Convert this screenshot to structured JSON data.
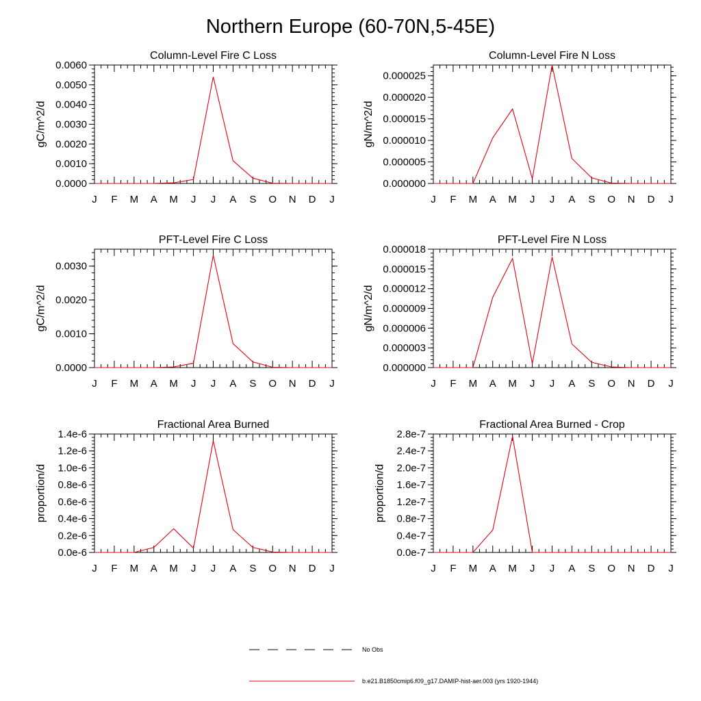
{
  "figure_title": "Northern Europe (60-70N,5-45E)",
  "legend": {
    "items": [
      {
        "name": "No Obs",
        "style": "dashed",
        "color": "#000000"
      },
      {
        "name": "b.e21.B1850cmip6.f09_g17.DAMIP-hist-aer.003 (yrs 1920-1944)",
        "style": "solid",
        "color": "#e4000f"
      }
    ]
  },
  "chart_data": [
    {
      "type": "line",
      "title": "Column-Level Fire C Loss",
      "ylabel": "gC/m^2/d",
      "xlabel": "",
      "categories": [
        "J",
        "F",
        "M",
        "A",
        "M",
        "J",
        "J",
        "A",
        "S",
        "O",
        "N",
        "D",
        "J"
      ],
      "ylim": [
        0,
        0.006
      ],
      "yticks": [
        0,
        0.001,
        0.002,
        0.003,
        0.004,
        0.005,
        0.006
      ],
      "ytick_labels": [
        "0.0000",
        "0.0010",
        "0.0020",
        "0.0030",
        "0.0040",
        "0.0050",
        "0.0060"
      ],
      "series": [
        {
          "values": [
            0,
            0,
            0,
            5e-06,
            3e-05,
            0.0002,
            0.0054,
            0.00115,
            0.00027,
            1e-05,
            0,
            0,
            0
          ],
          "color": "#e4000f"
        }
      ]
    },
    {
      "type": "line",
      "title": "Column-Level Fire N Loss",
      "ylabel": "gN/m^2/d",
      "xlabel": "",
      "categories": [
        "J",
        "F",
        "M",
        "A",
        "M",
        "J",
        "J",
        "A",
        "S",
        "O",
        "N",
        "D",
        "J"
      ],
      "ylim": [
        0,
        2.75e-05
      ],
      "yticks": [
        0,
        5e-06,
        1e-05,
        1.5e-05,
        2e-05,
        2.5e-05
      ],
      "ytick_labels": [
        "0.000000",
        "0.000005",
        "0.000010",
        "0.000015",
        "0.000020",
        "0.000025"
      ],
      "series": [
        {
          "values": [
            0,
            0,
            0,
            1.06e-05,
            1.73e-05,
            1.1e-06,
            2.75e-05,
            5.8e-06,
            1.3e-06,
            1e-07,
            0,
            0,
            0
          ],
          "color": "#e4000f"
        }
      ]
    },
    {
      "type": "line",
      "title": "PFT-Level Fire C Loss",
      "ylabel": "gC/m^2/d",
      "xlabel": "",
      "categories": [
        "J",
        "F",
        "M",
        "A",
        "M",
        "J",
        "J",
        "A",
        "S",
        "O",
        "N",
        "D",
        "J"
      ],
      "ylim": [
        0,
        0.0035
      ],
      "yticks": [
        0,
        0.001,
        0.002,
        0.003
      ],
      "ytick_labels": [
        "0.0000",
        "0.0010",
        "0.0020",
        "0.0030"
      ],
      "series": [
        {
          "values": [
            0,
            0,
            0,
            0,
            2e-05,
            0.00013,
            0.00332,
            0.00071,
            0.00017,
            1e-05,
            0,
            0,
            0
          ],
          "color": "#e4000f"
        }
      ]
    },
    {
      "type": "line",
      "title": "PFT-Level Fire N Loss",
      "ylabel": "gN/m^2/d",
      "xlabel": "",
      "categories": [
        "J",
        "F",
        "M",
        "A",
        "M",
        "J",
        "J",
        "A",
        "S",
        "O",
        "N",
        "D",
        "J"
      ],
      "ylim": [
        0,
        1.8e-05
      ],
      "yticks": [
        0,
        3e-06,
        6e-06,
        9e-06,
        1.2e-05,
        1.5e-05,
        1.8e-05
      ],
      "ytick_labels": [
        "0.000000",
        "0.000003",
        "0.000006",
        "0.000009",
        "0.000012",
        "0.000015",
        "0.000018"
      ],
      "series": [
        {
          "values": [
            0,
            0,
            0,
            1.07e-05,
            1.66e-05,
            6e-07,
            1.68e-05,
            3.6e-06,
            8e-07,
            1e-07,
            0,
            0,
            0
          ],
          "color": "#e4000f"
        }
      ]
    },
    {
      "type": "line",
      "title": "Fractional Area Burned",
      "ylabel": "proportion/d",
      "xlabel": "",
      "categories": [
        "J",
        "F",
        "M",
        "A",
        "M",
        "J",
        "J",
        "A",
        "S",
        "O",
        "N",
        "D",
        "J"
      ],
      "ylim": [
        0,
        1.4e-06
      ],
      "yticks": [
        0,
        2e-07,
        4e-07,
        6e-07,
        8e-07,
        1e-06,
        1.2e-06,
        1.4e-06
      ],
      "ytick_labels": [
        "0.0e-6",
        "0.2e-6",
        "0.4e-6",
        "0.6e-6",
        "0.8e-6",
        "1.0e-6",
        "1.2e-6",
        "1.4e-6"
      ],
      "series": [
        {
          "values": [
            0,
            0,
            0,
            6e-08,
            2.8e-07,
            5e-08,
            1.32e-06,
            2.7e-07,
            6e-08,
            5e-09,
            0,
            0,
            0
          ],
          "color": "#e4000f"
        }
      ]
    },
    {
      "type": "line",
      "title": "Fractional Area Burned - Crop",
      "ylabel": "proportion/d",
      "xlabel": "",
      "categories": [
        "J",
        "F",
        "M",
        "A",
        "M",
        "J",
        "J",
        "A",
        "S",
        "O",
        "N",
        "D",
        "J"
      ],
      "ylim": [
        0,
        2.8e-07
      ],
      "yticks": [
        0,
        4e-08,
        8e-08,
        1.2e-07,
        1.6e-07,
        2e-07,
        2.4e-07,
        2.8e-07
      ],
      "ytick_labels": [
        "0.0e-7",
        "0.4e-7",
        "0.8e-7",
        "1.2e-7",
        "1.6e-7",
        "2.0e-7",
        "2.4e-7",
        "2.8e-7"
      ],
      "series": [
        {
          "values": [
            0,
            0,
            0,
            5.3e-08,
            2.75e-07,
            0,
            0,
            0,
            0,
            0,
            0,
            0,
            0
          ],
          "color": "#e4000f"
        }
      ]
    }
  ]
}
